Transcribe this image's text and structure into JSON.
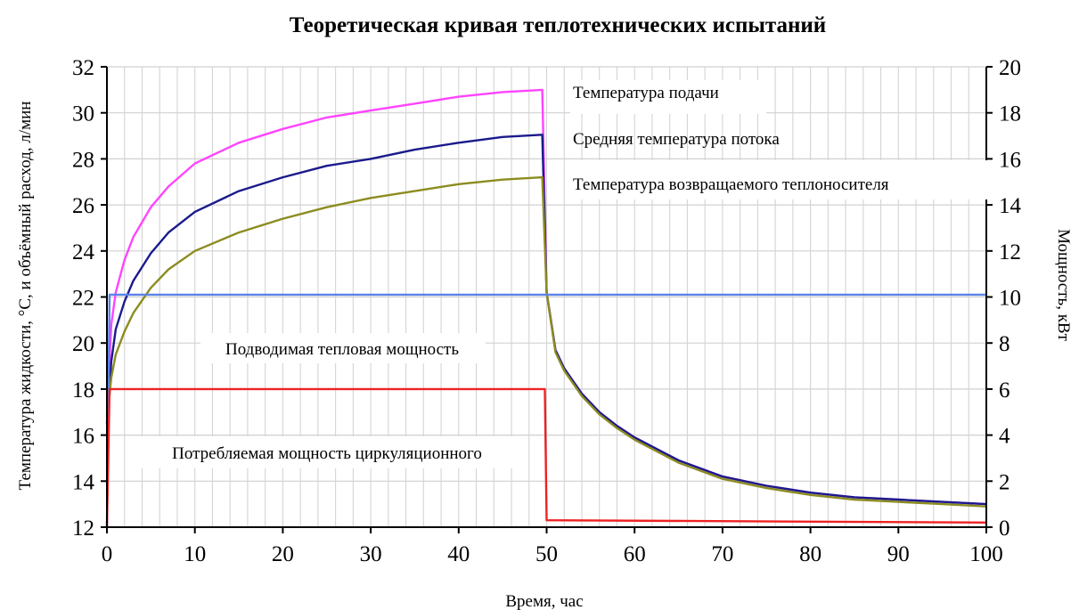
{
  "chart_data": {
    "type": "line",
    "title": "Теоретическая кривая теплотехнических испытаний",
    "xlabel": "Время, час",
    "ylabel_left": "Температура жидкости, °С, и объёмный расход, л/мин",
    "ylabel_right": "Мощность, кВт",
    "xlim": [
      0,
      100
    ],
    "ylim_left": [
      12,
      32
    ],
    "ylim_right": [
      0,
      20
    ],
    "x_ticks": [
      0,
      10,
      20,
      30,
      40,
      50,
      60,
      70,
      80,
      90,
      100
    ],
    "y_left_ticks": [
      12,
      14,
      16,
      18,
      20,
      22,
      24,
      26,
      28,
      30,
      32
    ],
    "y_right_ticks": [
      0,
      2,
      4,
      6,
      8,
      10,
      12,
      14,
      16,
      18,
      20
    ],
    "grid": true,
    "annotations": [
      {
        "text": "Температура подачи",
        "series": "Температура подачи"
      },
      {
        "text": "Средняя температура потока",
        "series": "Средняя температура потока"
      },
      {
        "text": "Температура возвращаемого теплоносителя",
        "series": "Температура возвращаемого теплоносителя"
      },
      {
        "text": "Подводимая тепловая мощность",
        "series": "Подводимая тепловая мощность"
      },
      {
        "text": "Потребляемая мощность циркуляционного",
        "series": "Потребляемая мощность циркуляционного"
      }
    ],
    "series": [
      {
        "name": "Температура подачи",
        "axis": "left",
        "color": "#ff44ff",
        "x": [
          0,
          0.5,
          1,
          2,
          3,
          5,
          7,
          10,
          15,
          20,
          25,
          30,
          35,
          40,
          45,
          49.5,
          50,
          51,
          52,
          54,
          56,
          58,
          60,
          65,
          70,
          75,
          80,
          85,
          90,
          95,
          100
        ],
        "y": [
          16.8,
          20.8,
          22.2,
          23.6,
          24.6,
          25.9,
          26.8,
          27.8,
          28.7,
          29.3,
          29.8,
          30.1,
          30.4,
          30.7,
          30.9,
          31.0,
          22.2,
          19.7,
          18.9,
          17.8,
          17.0,
          16.4,
          15.9,
          14.9,
          14.2,
          13.8,
          13.5,
          13.3,
          13.2,
          13.1,
          13.0
        ]
      },
      {
        "name": "Средняя температура потока",
        "axis": "left",
        "color": "#1a1a8c",
        "x": [
          0,
          0.5,
          1,
          2,
          3,
          5,
          7,
          10,
          15,
          20,
          25,
          30,
          35,
          40,
          45,
          49.5,
          50,
          51,
          52,
          54,
          56,
          58,
          60,
          65,
          70,
          75,
          80,
          85,
          90,
          95,
          100
        ],
        "y": [
          16.5,
          19.2,
          20.6,
          21.8,
          22.7,
          23.9,
          24.8,
          25.7,
          26.6,
          27.2,
          27.7,
          28.0,
          28.4,
          28.7,
          28.95,
          29.05,
          22.2,
          19.7,
          18.9,
          17.8,
          17.0,
          16.4,
          15.9,
          14.9,
          14.2,
          13.8,
          13.5,
          13.3,
          13.2,
          13.1,
          13.0
        ]
      },
      {
        "name": "Температура возвращаемого теплоносителя",
        "axis": "left",
        "color": "#8c8c20",
        "x": [
          0,
          0.5,
          1,
          2,
          3,
          5,
          7,
          10,
          15,
          20,
          25,
          30,
          35,
          40,
          45,
          49.5,
          50,
          51,
          52,
          54,
          56,
          58,
          60,
          65,
          70,
          75,
          80,
          85,
          90,
          95,
          100
        ],
        "y": [
          16.6,
          18.5,
          19.5,
          20.5,
          21.3,
          22.4,
          23.2,
          24.0,
          24.8,
          25.4,
          25.9,
          26.3,
          26.6,
          26.9,
          27.1,
          27.2,
          22.2,
          19.6,
          18.8,
          17.7,
          16.9,
          16.3,
          15.8,
          14.8,
          14.1,
          13.7,
          13.4,
          13.2,
          13.1,
          13.0,
          12.9
        ]
      },
      {
        "name": "Подводимая тепловая мощность",
        "axis": "right",
        "color": "#5b82e6",
        "x": [
          0,
          0.3,
          100
        ],
        "y": [
          0,
          10.1,
          10.1
        ]
      },
      {
        "name": "Потребляемая мощность циркуляционного",
        "axis": "right",
        "color": "#ee2222",
        "x": [
          0,
          0.3,
          49.8,
          50,
          100
        ],
        "y": [
          0,
          6.0,
          6.0,
          0.3,
          0.2
        ]
      }
    ]
  }
}
